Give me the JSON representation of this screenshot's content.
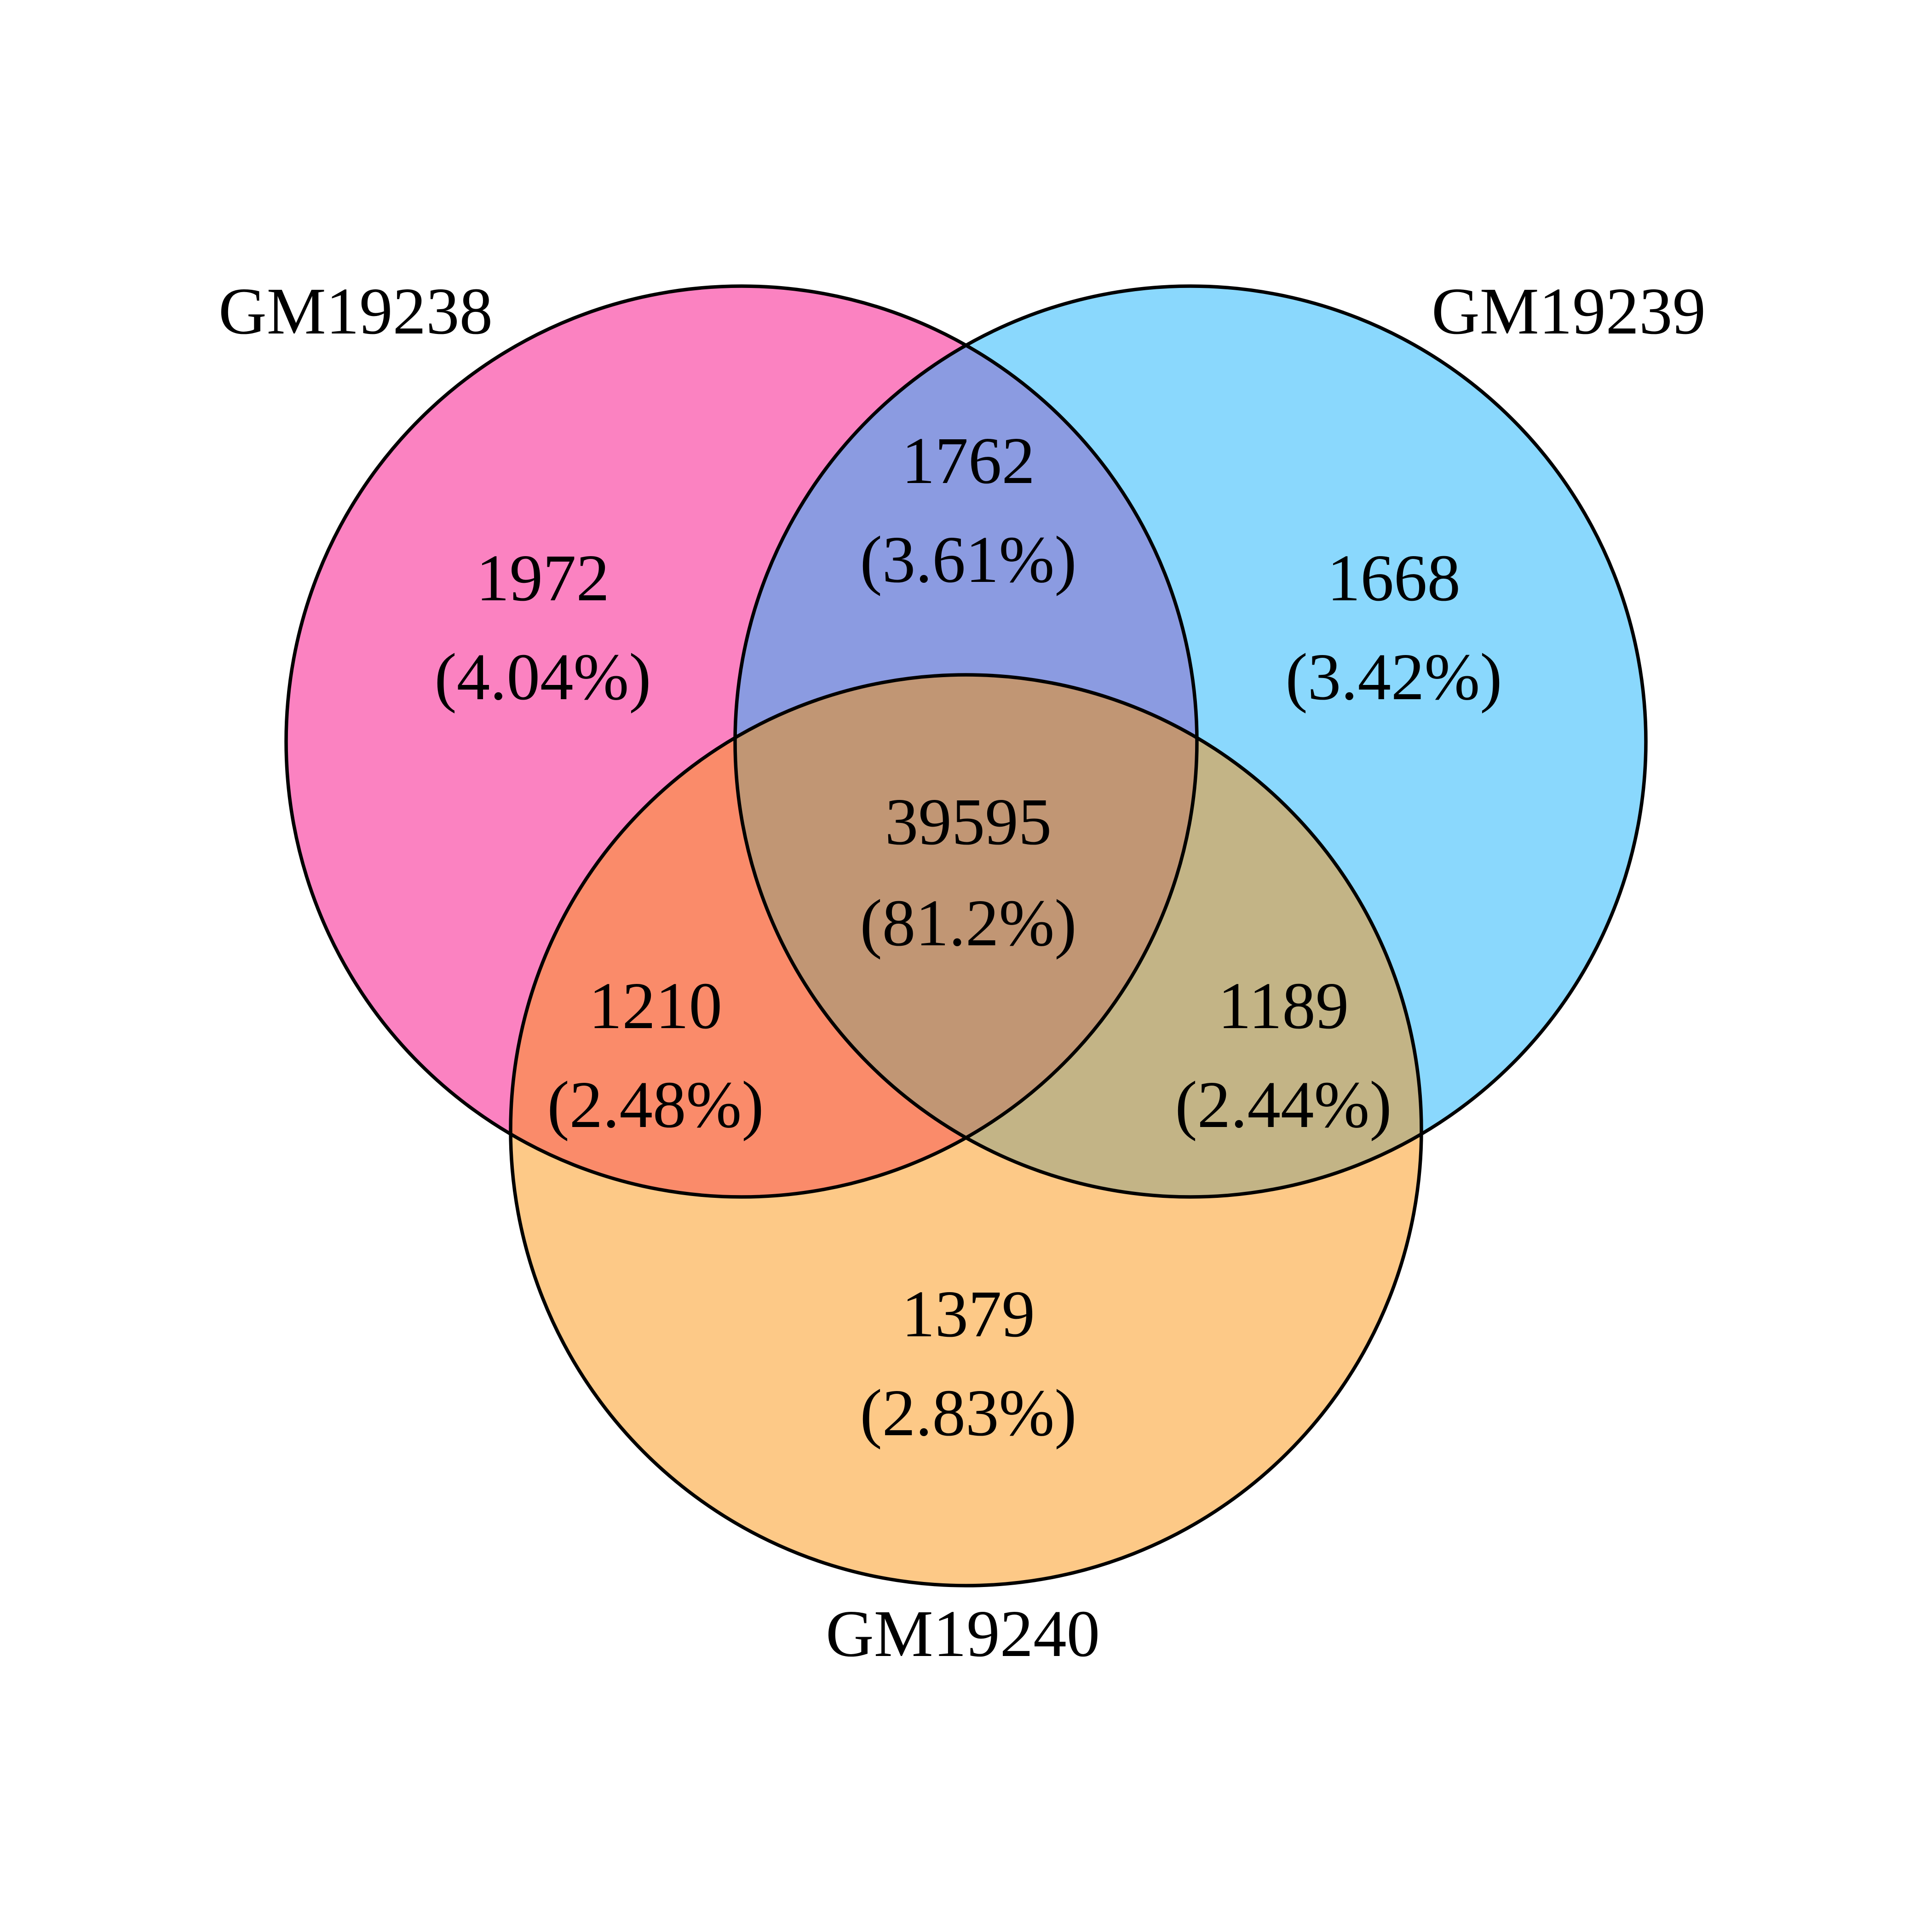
{
  "diagram": {
    "type": "venn",
    "sets": [
      {
        "label": "GM19238",
        "color": "#FB82C1"
      },
      {
        "label": "GM19239",
        "color": "#8AD8FD"
      },
      {
        "label": "GM19240",
        "color": "#FDC987"
      }
    ],
    "regions": [
      {
        "sets": [
          "GM19238"
        ],
        "count": "1972",
        "percent": "(4.04%)",
        "color": "#FB82C1"
      },
      {
        "sets": [
          "GM19239"
        ],
        "count": "1668",
        "percent": "(3.42%)",
        "color": "#8AD8FD"
      },
      {
        "sets": [
          "GM19240"
        ],
        "count": "1379",
        "percent": "(2.83%)",
        "color": "#FDC987"
      },
      {
        "sets": [
          "GM19238",
          "GM19239"
        ],
        "count": "1762",
        "percent": "(3.61%)",
        "color": "#8B9BE1"
      },
      {
        "sets": [
          "GM19238",
          "GM19240"
        ],
        "count": "1210",
        "percent": "(2.48%)",
        "color": "#FA8B6A"
      },
      {
        "sets": [
          "GM19239",
          "GM19240"
        ],
        "count": "1189",
        "percent": "(2.44%)",
        "color": "#C3B486"
      },
      {
        "sets": [
          "GM19238",
          "GM19239",
          "GM19240"
        ],
        "count": "39595",
        "percent": "(81.2%)",
        "color": "#C19674"
      }
    ]
  }
}
